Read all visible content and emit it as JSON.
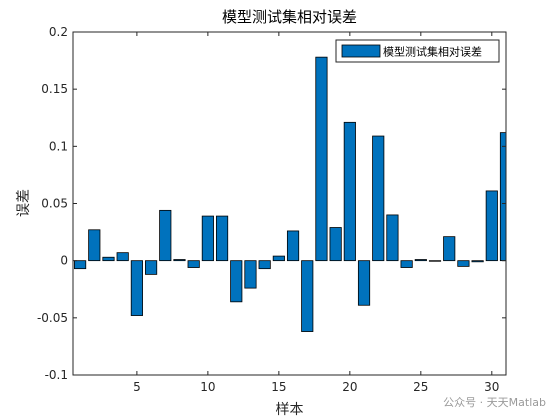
{
  "chart_data": {
    "type": "bar",
    "title": "模型测试集相对误差",
    "xlabel": "样本",
    "ylabel": "误差",
    "legend": {
      "label": "模型测试集相对误差",
      "position": "top-right"
    },
    "xlim": [
      0.5,
      31
    ],
    "ylim": [
      -0.1,
      0.2
    ],
    "xticks": [
      5,
      10,
      15,
      20,
      25,
      30
    ],
    "yticks": [
      -0.1,
      -0.05,
      0,
      0.05,
      0.1,
      0.15,
      0.2
    ],
    "ytick_labels": [
      "-0.1",
      "-0.05",
      "0",
      "0.05",
      "0.1",
      "0.15",
      "0.2"
    ],
    "x": [
      1,
      2,
      3,
      4,
      5,
      6,
      7,
      8,
      9,
      10,
      11,
      12,
      13,
      14,
      15,
      16,
      17,
      18,
      19,
      20,
      21,
      22,
      23,
      24,
      25,
      26,
      27,
      28,
      29,
      30,
      31
    ],
    "values": [
      -0.007,
      0.027,
      0.003,
      0.007,
      -0.048,
      -0.012,
      0.044,
      0.001,
      -0.006,
      0.039,
      0.039,
      -0.036,
      -0.024,
      -0.007,
      0.004,
      0.026,
      -0.062,
      0.178,
      0.029,
      0.121,
      -0.039,
      0.109,
      0.04,
      -0.006,
      0.001,
      0.0,
      0.021,
      -0.005,
      -0.001,
      0.061,
      0.112
    ],
    "bar_color": "#0072BD",
    "grid": false
  },
  "watermark": "公众号 · 天天Matlab"
}
